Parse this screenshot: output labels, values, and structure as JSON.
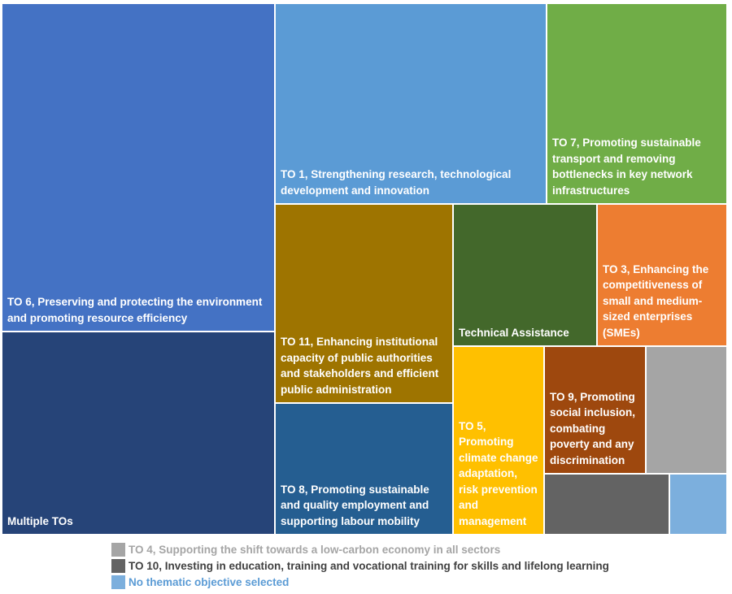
{
  "chart_data": {
    "type": "treemap",
    "items": [
      {
        "name": "TO 6, Preserving and protecting the environment and promoting resource efficiency",
        "color": "#4472C4",
        "rank": 1
      },
      {
        "name": "Multiple TOs",
        "color": "#264478",
        "rank": 2
      },
      {
        "name": "TO 1, Strengthening research, technological development and innovation",
        "color": "#5B9BD5",
        "rank": 3
      },
      {
        "name": "TO 7, Promoting sustainable transport and removing bottlenecks in key network infrastructures",
        "color": "#70AD47",
        "rank": 4
      },
      {
        "name": "TO 11, Enhancing institutional capacity of public authorities and stakeholders and efficient public administration",
        "color": "#9E7400",
        "rank": 5
      },
      {
        "name": "TO 8, Promoting sustainable and quality employment and supporting labour mobility",
        "color": "#255E91",
        "rank": 6
      },
      {
        "name": "Technical Assistance",
        "color": "#43682B",
        "rank": 7
      },
      {
        "name": "TO 3, Enhancing the competitiveness of small and medium-sized enterprises (SMEs)",
        "color": "#ED7D31",
        "rank": 8
      },
      {
        "name": "TO 5, Promoting climate change adaptation, risk prevention and management",
        "color": "#FFC000",
        "rank": 9
      },
      {
        "name": "TO 9, Promoting social inclusion, combating poverty and any discrimination",
        "color": "#9E480E",
        "rank": 10
      },
      {
        "name": "TO 4, Supporting the shift towards a low-carbon economy in all sectors",
        "color": "#A5A5A5",
        "rank": 11,
        "legend_text_color": "#A5A5A5"
      },
      {
        "name": "TO 10, Investing in education, training and vocational training for skills and lifelong learning",
        "color": "#636363",
        "rank": 12,
        "legend_text_color": "#404040"
      },
      {
        "name": "No thematic objective selected",
        "color": "#7CAFDD",
        "rank": 13,
        "legend_text_color": "#5B9BD5"
      }
    ],
    "labeled_in_tile": [
      "TO 6, Preserving and protecting the environment and promoting resource efficiency",
      "Multiple TOs",
      "TO 1, Strengthening research, technological development and innovation",
      "TO 7, Promoting sustainable transport and removing bottlenecks in key network infrastructures",
      "TO 11, Enhancing institutional capacity of public authorities and stakeholders and efficient public administration",
      "TO 8, Promoting sustainable and quality employment and supporting labour mobility",
      "Technical Assistance",
      "TO 3, Enhancing the competitiveness of small and medium-sized enterprises (SMEs)",
      "TO 5, Promoting climate change adaptation, risk prevention and management",
      "TO 9, Promoting social inclusion, combating poverty and any discrimination"
    ],
    "legend": [
      "TO 4, Supporting the shift towards a low-carbon economy in all sectors",
      "TO 10, Investing in education, training and vocational training for skills and lifelong learning",
      "No thematic objective selected"
    ],
    "legend_position": "bottom"
  }
}
